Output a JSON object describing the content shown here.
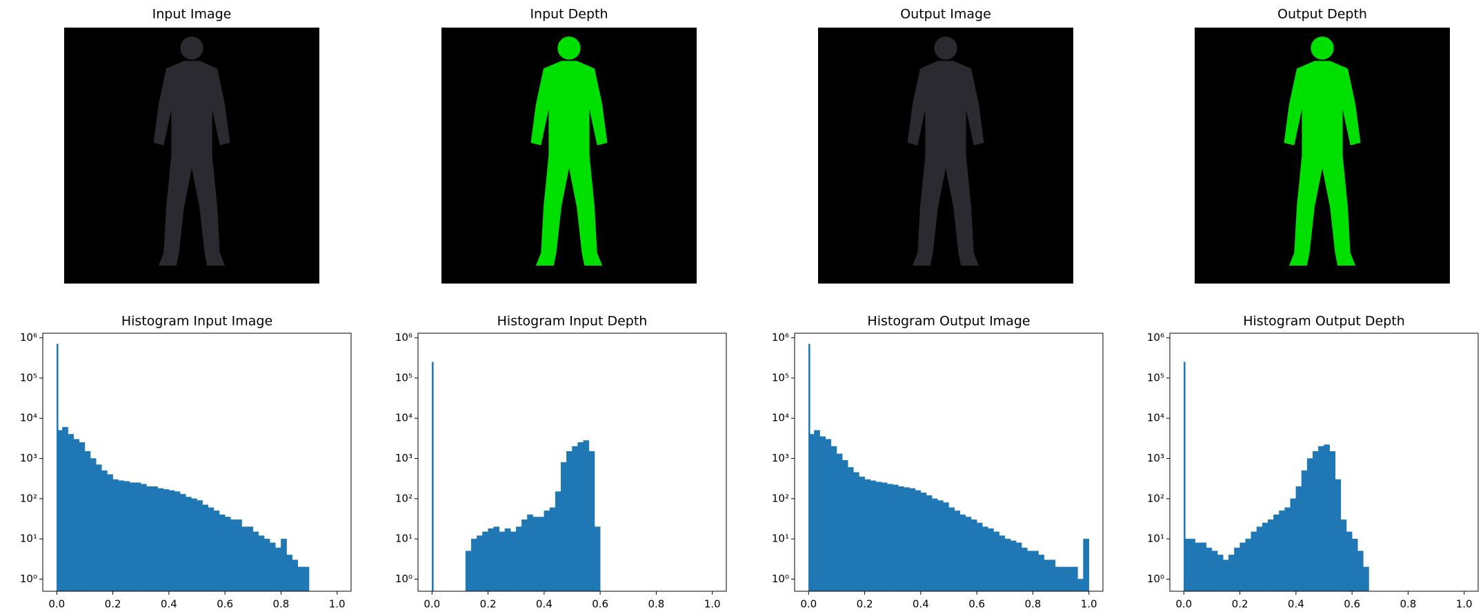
{
  "images": [
    {
      "title": "Input Image"
    },
    {
      "title": "Input Depth"
    },
    {
      "title": "Output Image"
    },
    {
      "title": "Output Depth"
    }
  ],
  "chart_data": [
    {
      "type": "histogram",
      "title": "Histogram Input Image",
      "color": "#1f77b4",
      "log_y": true,
      "bins": [
        0,
        0.005,
        0.02,
        0.04,
        0.06,
        0.08,
        0.1,
        0.12,
        0.14,
        0.16,
        0.18,
        0.2,
        0.22,
        0.24,
        0.26,
        0.28,
        0.3,
        0.32,
        0.34,
        0.36,
        0.38,
        0.4,
        0.42,
        0.44,
        0.46,
        0.48,
        0.5,
        0.52,
        0.54,
        0.56,
        0.58,
        0.6,
        0.62,
        0.64,
        0.66,
        0.68,
        0.7,
        0.72,
        0.74,
        0.76,
        0.78,
        0.8,
        0.82,
        0.84,
        0.86,
        0.88,
        0.9,
        0.92,
        0.94,
        0.96,
        0.98,
        1.0
      ],
      "values": [
        700000,
        5000,
        6000,
        4000,
        3000,
        2500,
        1500,
        1000,
        700,
        500,
        400,
        300,
        280,
        270,
        250,
        250,
        230,
        200,
        200,
        180,
        170,
        160,
        150,
        130,
        110,
        100,
        90,
        70,
        60,
        50,
        40,
        35,
        30,
        30,
        20,
        20,
        15,
        12,
        10,
        8,
        6,
        10,
        4,
        3,
        2,
        2,
        0,
        0,
        0,
        0,
        0
      ],
      "xlim": [
        -0.05,
        1.05
      ],
      "ylim": [
        0.5,
        1300000
      ],
      "xticks": [
        {
          "value": 0,
          "label": "0.0"
        },
        0.2,
        0.4,
        0.6,
        0.8,
        {
          "value": 1,
          "label": "1.0"
        }
      ],
      "yticks": [
        {
          "value": 1,
          "label": "10⁰"
        },
        {
          "value": 10,
          "label": "10¹"
        },
        {
          "value": 100,
          "label": "10²"
        },
        {
          "value": 1000,
          "label": "10³"
        },
        {
          "value": 10000,
          "label": "10⁴"
        },
        {
          "value": 100000,
          "label": "10⁵"
        },
        {
          "value": 1000000,
          "label": "10⁶"
        }
      ]
    },
    {
      "type": "histogram",
      "title": "Histogram Input Depth",
      "color": "#1f77b4",
      "log_y": true,
      "bins": [
        0,
        0.005,
        0.02,
        0.04,
        0.06,
        0.08,
        0.1,
        0.12,
        0.14,
        0.16,
        0.18,
        0.2,
        0.22,
        0.24,
        0.26,
        0.28,
        0.3,
        0.32,
        0.34,
        0.36,
        0.38,
        0.4,
        0.42,
        0.44,
        0.46,
        0.48,
        0.5,
        0.52,
        0.54,
        0.56,
        0.58,
        0.6,
        0.62,
        0.64,
        0.66,
        0.68,
        0.7,
        0.72,
        0.74,
        0.76,
        0.78,
        0.8,
        0.82,
        0.84,
        0.86,
        0.88,
        0.9,
        0.92,
        0.94,
        0.96,
        0.98,
        1.0
      ],
      "values": [
        250000,
        0,
        0,
        0,
        0,
        0,
        0,
        5,
        10,
        12,
        15,
        18,
        20,
        15,
        18,
        15,
        20,
        30,
        40,
        35,
        35,
        50,
        60,
        150,
        800,
        1500,
        2000,
        2500,
        2800,
        1500,
        20,
        0,
        0,
        0,
        0,
        0,
        0,
        0,
        0,
        0,
        0,
        0,
        0,
        0,
        0,
        0,
        0,
        0,
        0,
        0,
        0
      ],
      "xlim": [
        -0.05,
        1.05
      ],
      "ylim": [
        0.5,
        1300000
      ],
      "xticks": [
        {
          "value": 0,
          "label": "0.0"
        },
        0.2,
        0.4,
        0.6,
        0.8,
        {
          "value": 1,
          "label": "1.0"
        }
      ],
      "yticks": [
        {
          "value": 1,
          "label": "10⁰"
        },
        {
          "value": 10,
          "label": "10¹"
        },
        {
          "value": 100,
          "label": "10²"
        },
        {
          "value": 1000,
          "label": "10³"
        },
        {
          "value": 10000,
          "label": "10⁴"
        },
        {
          "value": 100000,
          "label": "10⁵"
        },
        {
          "value": 1000000,
          "label": "10⁶"
        }
      ]
    },
    {
      "type": "histogram",
      "title": "Histogram Output Image",
      "color": "#1f77b4",
      "log_y": true,
      "bins": [
        0,
        0.005,
        0.02,
        0.04,
        0.06,
        0.08,
        0.1,
        0.12,
        0.14,
        0.16,
        0.18,
        0.2,
        0.22,
        0.24,
        0.26,
        0.28,
        0.3,
        0.32,
        0.34,
        0.36,
        0.38,
        0.4,
        0.42,
        0.44,
        0.46,
        0.48,
        0.5,
        0.52,
        0.54,
        0.56,
        0.58,
        0.6,
        0.62,
        0.64,
        0.66,
        0.68,
        0.7,
        0.72,
        0.74,
        0.76,
        0.78,
        0.8,
        0.82,
        0.84,
        0.86,
        0.88,
        0.9,
        0.92,
        0.94,
        0.96,
        0.98,
        1.0
      ],
      "values": [
        700000,
        4000,
        5000,
        3500,
        3000,
        2000,
        1300,
        900,
        600,
        450,
        350,
        300,
        280,
        260,
        250,
        230,
        220,
        200,
        190,
        180,
        160,
        140,
        120,
        100,
        90,
        80,
        60,
        50,
        40,
        35,
        30,
        25,
        20,
        18,
        15,
        12,
        10,
        9,
        8,
        6,
        5,
        5,
        4,
        3,
        3,
        2,
        2,
        2,
        2,
        1,
        10
      ],
      "xlim": [
        -0.05,
        1.05
      ],
      "ylim": [
        0.5,
        1300000
      ],
      "xticks": [
        {
          "value": 0,
          "label": "0.0"
        },
        0.2,
        0.4,
        0.6,
        0.8,
        {
          "value": 1,
          "label": "1.0"
        }
      ],
      "yticks": [
        {
          "value": 1,
          "label": "10⁰"
        },
        {
          "value": 10,
          "label": "10¹"
        },
        {
          "value": 100,
          "label": "10²"
        },
        {
          "value": 1000,
          "label": "10³"
        },
        {
          "value": 10000,
          "label": "10⁴"
        },
        {
          "value": 100000,
          "label": "10⁵"
        },
        {
          "value": 1000000,
          "label": "10⁶"
        }
      ]
    },
    {
      "type": "histogram",
      "title": "Histogram Output Depth",
      "color": "#1f77b4",
      "log_y": true,
      "bins": [
        0,
        0.005,
        0.02,
        0.04,
        0.06,
        0.08,
        0.1,
        0.12,
        0.14,
        0.16,
        0.18,
        0.2,
        0.22,
        0.24,
        0.26,
        0.28,
        0.3,
        0.32,
        0.34,
        0.36,
        0.38,
        0.4,
        0.42,
        0.44,
        0.46,
        0.48,
        0.5,
        0.52,
        0.54,
        0.56,
        0.58,
        0.6,
        0.62,
        0.64,
        0.66,
        0.68,
        0.7,
        0.72,
        0.74,
        0.76,
        0.78,
        0.8,
        0.82,
        0.84,
        0.86,
        0.88,
        0.9,
        0.92,
        0.94,
        0.96,
        0.98,
        1.0
      ],
      "values": [
        250000,
        10,
        10,
        8,
        8,
        6,
        5,
        4,
        3,
        4,
        6,
        8,
        10,
        15,
        20,
        25,
        30,
        40,
        50,
        60,
        100,
        200,
        500,
        1000,
        1500,
        2000,
        2200,
        1500,
        300,
        30,
        15,
        10,
        5,
        2,
        0,
        0,
        0,
        0,
        0,
        0,
        0,
        0,
        0,
        0,
        0,
        0,
        0,
        0,
        0,
        0,
        0
      ],
      "xlim": [
        -0.05,
        1.05
      ],
      "ylim": [
        0.5,
        1300000
      ],
      "xticks": [
        {
          "value": 0,
          "label": "0.0"
        },
        0.2,
        0.4,
        0.6,
        0.8,
        {
          "value": 1,
          "label": "1.0"
        }
      ],
      "yticks": [
        {
          "value": 1,
          "label": "10⁰"
        },
        {
          "value": 10,
          "label": "10¹"
        },
        {
          "value": 100,
          "label": "10²"
        },
        {
          "value": 1000,
          "label": "10³"
        },
        {
          "value": 10000,
          "label": "10⁴"
        },
        {
          "value": 100000,
          "label": "10⁵"
        },
        {
          "value": 1000000,
          "label": "10⁶"
        }
      ]
    }
  ]
}
